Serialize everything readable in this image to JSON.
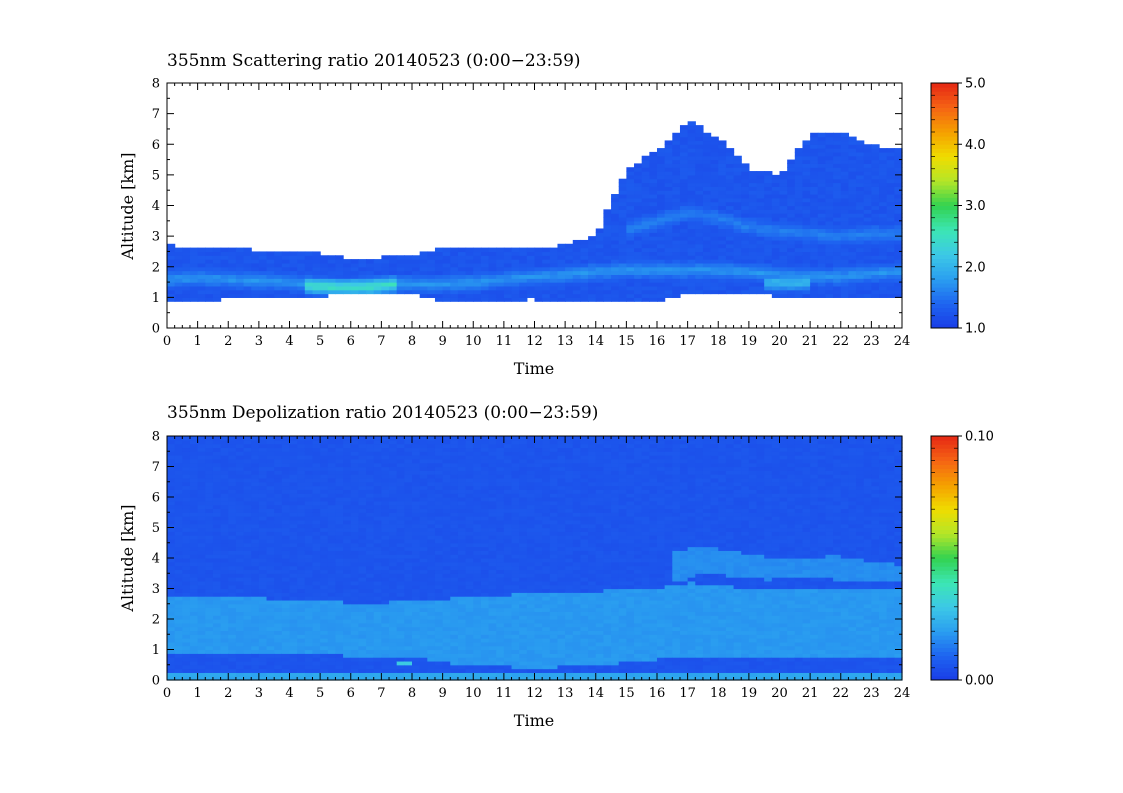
{
  "chart_data": [
    {
      "type": "heatmap",
      "title": "355nm Scattering ratio  20140523 (0:00−23:59)",
      "xlabel": "Time",
      "ylabel": "Altitude [km]",
      "xlim": [
        0,
        24
      ],
      "ylim": [
        0,
        8
      ],
      "xticks": [
        "0",
        "1",
        "2",
        "3",
        "4",
        "5",
        "6",
        "7",
        "8",
        "9",
        "10",
        "11",
        "12",
        "13",
        "14",
        "15",
        "16",
        "17",
        "18",
        "19",
        "20",
        "21",
        "22",
        "23",
        "24"
      ],
      "yticks": [
        "0",
        "1",
        "2",
        "3",
        "4",
        "5",
        "6",
        "7",
        "8"
      ],
      "colorbar": {
        "range": [
          1.0,
          5.0
        ],
        "tick_labels": [
          "1.0",
          "2.0",
          "3.0",
          "4.0",
          "5.0"
        ],
        "colors": [
          "#1a3de6",
          "#1e64f0",
          "#2a9ef0",
          "#3cc8e6",
          "#3ce6b4",
          "#32d250",
          "#b4e628",
          "#f0dc00",
          "#f5a000",
          "#f56414",
          "#e62814"
        ]
      },
      "signal_region": {
        "x": [
          0,
          1,
          2,
          3,
          4,
          5,
          6,
          7,
          8,
          9,
          10,
          11,
          12,
          13,
          14,
          15,
          16,
          17,
          18,
          19,
          20,
          21,
          22,
          23,
          24
        ],
        "bottom_km": [
          0.9,
          0.9,
          0.95,
          0.95,
          1.0,
          1.05,
          1.1,
          1.2,
          1.1,
          0.9,
          0.85,
          0.9,
          0.95,
          0.85,
          0.85,
          0.9,
          0.9,
          1.1,
          1.1,
          1.1,
          1.05,
          1.05,
          1.0,
          0.95,
          0.95
        ],
        "top_km": [
          2.7,
          2.65,
          2.6,
          2.55,
          2.5,
          2.45,
          2.25,
          2.3,
          2.4,
          2.6,
          2.65,
          2.65,
          2.65,
          2.7,
          3.0,
          5.2,
          5.8,
          6.8,
          6.2,
          5.2,
          5.0,
          6.3,
          6.4,
          6.0,
          5.8
        ],
        "base_ratio": 1.25,
        "layers": [
          {
            "x_start": 0,
            "x_end": 24,
            "center_km": [
              1.6,
              1.65,
              1.6,
              1.55,
              1.5,
              1.4,
              1.35,
              1.45,
              1.45,
              1.45,
              1.5,
              1.6,
              1.7,
              1.75,
              1.85,
              1.9,
              1.9,
              1.9,
              1.9,
              1.85,
              1.75,
              1.7,
              1.7,
              1.8,
              1.85
            ],
            "ratio": 1.75
          },
          {
            "x_start": 4.5,
            "x_end": 7.5,
            "center_km": [
              1.4,
              1.35,
              1.35,
              1.45
            ],
            "ratio": 2.6
          },
          {
            "x_start": 15,
            "x_end": 24,
            "center_km": [
              3.2,
              3.5,
              3.8,
              3.6,
              3.3,
              3.2,
              3.1,
              3.0,
              3.1,
              3.1
            ],
            "ratio": 1.6
          },
          {
            "x_start": 19.5,
            "x_end": 21,
            "center_km": [
              1.5,
              1.5
            ],
            "ratio": 2.1
          }
        ]
      }
    },
    {
      "type": "heatmap",
      "title": "355nm Depolization ratio  20140523 (0:00−23:59)",
      "xlabel": "Time",
      "ylabel": "Altitude [km]",
      "xlim": [
        0,
        24
      ],
      "ylim": [
        0,
        8
      ],
      "xticks": [
        "0",
        "1",
        "2",
        "3",
        "4",
        "5",
        "6",
        "7",
        "8",
        "9",
        "10",
        "11",
        "12",
        "13",
        "14",
        "15",
        "16",
        "17",
        "18",
        "19",
        "20",
        "21",
        "22",
        "23",
        "24"
      ],
      "yticks": [
        "0",
        "1",
        "2",
        "3",
        "4",
        "5",
        "6",
        "7",
        "8"
      ],
      "colorbar": {
        "range": [
          0.0,
          0.1
        ],
        "tick_labels": [
          "0.00",
          "0.10"
        ],
        "colors": [
          "#1a3de6",
          "#1e64f0",
          "#2a9ef0",
          "#3cc8e6",
          "#3ce6b4",
          "#32d250",
          "#b4e628",
          "#f0dc00",
          "#f5a000",
          "#f56414",
          "#e62814"
        ]
      },
      "background_ratio": 0.006,
      "bands": [
        {
          "x_start": 0,
          "x_end": 24,
          "bottom_km": [
            0.9,
            0.9,
            0.9,
            0.9,
            0.9,
            0.85,
            0.8,
            0.8,
            0.75,
            0.6,
            0.5,
            0.45,
            0.4,
            0.45,
            0.5,
            0.6,
            0.7,
            0.8,
            0.8,
            0.8,
            0.8,
            0.8,
            0.75,
            0.75,
            0.75
          ],
          "top_km": [
            2.8,
            2.75,
            2.7,
            2.7,
            2.65,
            2.6,
            2.55,
            2.55,
            2.6,
            2.65,
            2.75,
            2.8,
            2.85,
            2.85,
            2.9,
            3.0,
            3.0,
            3.2,
            3.1,
            3.0,
            3.0,
            3.0,
            3.0,
            3.0,
            3.0
          ],
          "ratio": 0.019
        },
        {
          "x_start": 16.5,
          "x_end": 24,
          "bottom_km": [
            3.2,
            3.5,
            3.4,
            3.3,
            3.4,
            3.3,
            3.2,
            3.2
          ],
          "top_km": [
            4.2,
            4.4,
            4.2,
            4.0,
            4.0,
            4.1,
            3.9,
            3.8
          ],
          "ratio": 0.017
        },
        {
          "x_start": 0,
          "x_end": 24,
          "bottom_km": [
            0.05,
            0.05
          ],
          "top_km": [
            0.25,
            0.25
          ],
          "ratio": 0.022
        },
        {
          "x_start": 7.6,
          "x_end": 8.0,
          "bottom_km": [
            0.45,
            0.45
          ],
          "top_km": [
            0.6,
            0.6
          ],
          "ratio": 0.03
        }
      ]
    }
  ]
}
